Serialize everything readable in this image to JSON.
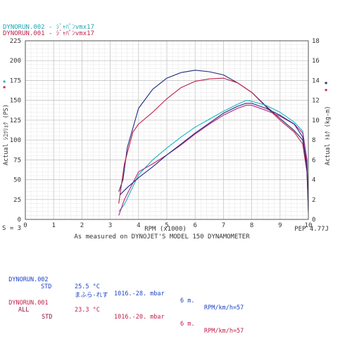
{
  "legend": [
    {
      "text": "DYNORUN.002 - ｼﾞｬﾊﾟﾝvmx17",
      "color": "#1aa7b5"
    },
    {
      "text": "DYNORUN.001 - ｼﾞｬﾊﾟﾝvmx17",
      "color": "#c0204a"
    }
  ],
  "chart_data": {
    "type": "line",
    "xlabel": "RPM (x1000)",
    "ylabel_left": "Actual ｼﾕﾂﾘｮｸ (PS)",
    "ylabel_right": "Actual ﾄﾙｸ (kg-m)",
    "xlim": [
      0,
      10
    ],
    "ylim_left": [
      0,
      225
    ],
    "ylim_right": [
      0,
      18
    ],
    "x_ticks": [
      "0",
      "1",
      "2",
      "3",
      "4",
      "5",
      "6",
      "7",
      "8",
      "9",
      "10"
    ],
    "y_left_ticks": [
      "0",
      "25",
      "50",
      "75",
      "100",
      "125",
      "150",
      "175",
      "200",
      "225"
    ],
    "y_right_ticks": [
      "0",
      "2",
      "4",
      "6",
      "8",
      "10",
      "12",
      "14",
      "16",
      "18"
    ],
    "grid": true,
    "footer_left": "S = 3",
    "footer_right": "PEP 4.77J",
    "subtitle": "As measured on DYNOJET'S MODEL 150 DYNAMOMETER",
    "series": [
      {
        "name": "DYNORUN.002",
        "measure": "power",
        "axis": "left",
        "color": "#1e2b80",
        "x": [
          3.3,
          3.45,
          3.6,
          4.0,
          4.5,
          5.0,
          5.5,
          6.0,
          6.5,
          7.0,
          7.5,
          8.0,
          8.5,
          9.0,
          9.5,
          9.8,
          9.95,
          10.0
        ],
        "y": [
          35,
          50,
          90,
          140,
          164,
          178,
          185,
          188,
          186,
          182,
          172,
          160,
          143,
          127,
          112,
          100,
          70,
          20
        ]
      },
      {
        "name": "DYNORUN.001",
        "measure": "power",
        "axis": "left",
        "color": "#c0204a",
        "x": [
          3.3,
          3.5,
          3.8,
          4.0,
          4.5,
          5.0,
          5.5,
          6.0,
          6.5,
          7.0,
          7.5,
          8.0,
          8.5,
          9.0,
          9.5,
          9.8,
          9.95,
          10.0
        ],
        "y": [
          20,
          70,
          110,
          120,
          135,
          152,
          166,
          174,
          177,
          178,
          172,
          160,
          142,
          125,
          110,
          95,
          60,
          15
        ]
      },
      {
        "name": "DYNORUN.002",
        "measure": "torque",
        "axis": "right",
        "color": "#19b3c2",
        "x": [
          3.3,
          3.5,
          4.0,
          4.5,
          5.0,
          5.5,
          6.0,
          6.5,
          7.0,
          7.5,
          7.8,
          8.0,
          8.5,
          9.0,
          9.5,
          9.8,
          9.95,
          10.0
        ],
        "y": [
          0.8,
          1.5,
          4.5,
          6.0,
          7.2,
          8.3,
          9.3,
          10.1,
          10.9,
          11.6,
          12.0,
          11.9,
          11.5,
          10.8,
          9.8,
          8.9,
          6,
          1
        ]
      },
      {
        "name": "DYNORUN.001",
        "measure": "torque",
        "axis": "right",
        "color": "#c0207a",
        "x": [
          3.3,
          3.5,
          4.0,
          4.5,
          5.0,
          5.5,
          6.0,
          6.5,
          7.0,
          7.5,
          7.8,
          8.0,
          8.5,
          9.0,
          9.5,
          9.8,
          9.95,
          10.0
        ],
        "y": [
          0.4,
          2.0,
          4.8,
          5.6,
          6.5,
          7.5,
          8.6,
          9.6,
          10.5,
          11.2,
          11.5,
          11.5,
          11.0,
          10.4,
          9.6,
          8.7,
          6,
          0.8
        ]
      },
      {
        "name": "DYNORUN.001",
        "measure": "torque",
        "axis": "right",
        "color": "#1e2b80",
        "x": [
          3.35,
          3.6,
          4.0,
          4.5,
          5.0,
          5.5,
          6.0,
          6.5,
          7.0,
          7.5,
          7.8,
          8.0,
          8.5,
          9.0,
          9.5,
          9.8,
          9.95,
          10.0
        ],
        "y": [
          2.5,
          3.2,
          4.2,
          5.3,
          6.5,
          7.6,
          8.7,
          9.7,
          10.7,
          11.4,
          11.7,
          11.7,
          11.2,
          10.5,
          9.6,
          8.3,
          5,
          0.6
        ]
      }
    ]
  },
  "runs": [
    {
      "label": "DYNORUN.002",
      "temp": "25.5 °C",
      "pressure": "1016.-28. mbar",
      "dist": "6 m.",
      "rpm_ratio": "RPM/km/h=57",
      "sub1": "STD",
      "sub2": "まふら-れす",
      "color": "#1e45c8",
      "sub_color": "#1e45c8"
    },
    {
      "label": "DYNORUN.001",
      "temp": "23.3 °C",
      "pressure": "1016.-20. mbar",
      "dist": "6 m.",
      "rpm_ratio": "RPM/km/h=57",
      "sub1": "ALL",
      "sub2": "STD",
      "color": "#c0204a",
      "sub_color": "#8a1540"
    }
  ]
}
